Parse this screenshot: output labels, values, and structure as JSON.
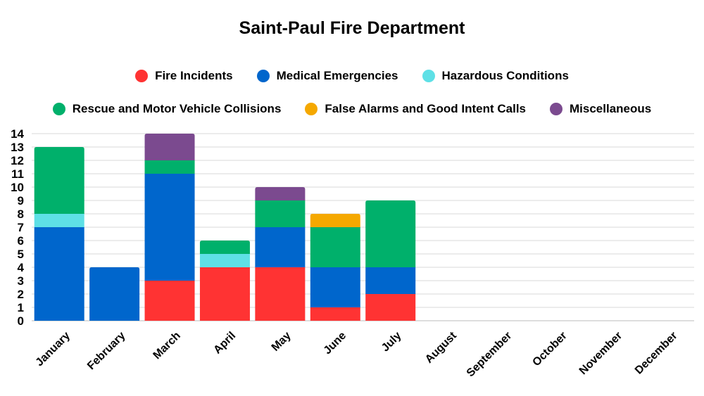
{
  "chart_data": {
    "type": "bar",
    "stacked": true,
    "title": "Saint-Paul Fire Department",
    "xlabel": "",
    "ylabel": "",
    "ylim": [
      0,
      14
    ],
    "yticks": [
      0,
      1,
      2,
      3,
      4,
      5,
      6,
      7,
      8,
      9,
      10,
      11,
      12,
      13,
      14
    ],
    "grid": true,
    "legend_position": "top",
    "categories": [
      "January",
      "February",
      "March",
      "April",
      "May",
      "June",
      "July",
      "August",
      "September",
      "October",
      "November",
      "December"
    ],
    "series": [
      {
        "name": "Fire Incidents",
        "color": "#ff3333",
        "values": [
          0,
          0,
          3,
          4,
          4,
          1,
          2,
          0,
          0,
          0,
          0,
          0
        ]
      },
      {
        "name": "Medical Emergencies",
        "color": "#0066cc",
        "values": [
          7,
          4,
          8,
          0,
          3,
          3,
          2,
          0,
          0,
          0,
          0,
          0
        ]
      },
      {
        "name": "Hazardous Conditions",
        "color": "#5ee0e6",
        "values": [
          1,
          0,
          0,
          1,
          0,
          0,
          0,
          0,
          0,
          0,
          0,
          0
        ]
      },
      {
        "name": "Rescue and Motor Vehicle Collisions",
        "color": "#00b06b",
        "values": [
          5,
          0,
          1,
          1,
          2,
          3,
          5,
          0,
          0,
          0,
          0,
          0
        ]
      },
      {
        "name": "False Alarms and Good Intent Calls",
        "color": "#f5a800",
        "values": [
          0,
          0,
          0,
          0,
          0,
          1,
          0,
          0,
          0,
          0,
          0,
          0
        ]
      },
      {
        "name": "Miscellaneous",
        "color": "#7b4a8f",
        "values": [
          0,
          0,
          2,
          0,
          1,
          0,
          0,
          0,
          0,
          0,
          0,
          0
        ]
      }
    ]
  }
}
